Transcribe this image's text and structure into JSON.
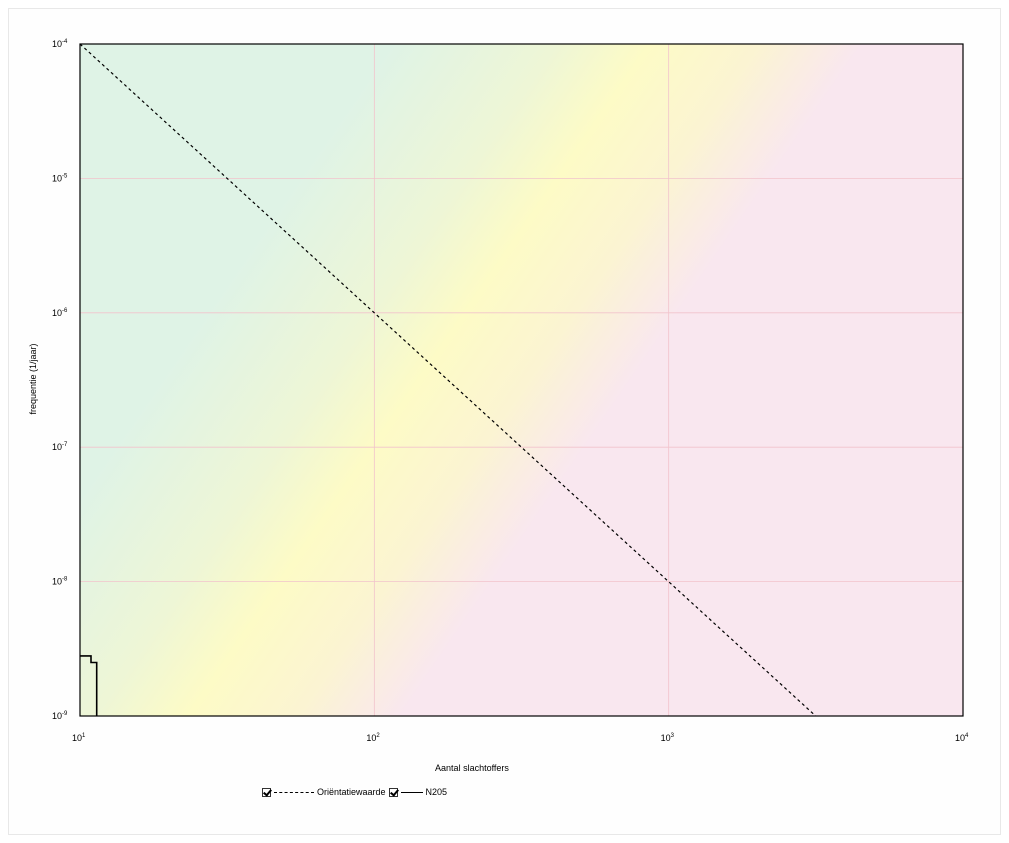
{
  "chart_data": {
    "type": "line",
    "xlabel": "Aantal slachtoffers",
    "ylabel": "frequentie (1/jaar)",
    "x_scale": "log",
    "y_scale": "log",
    "xlim": [
      10,
      10000
    ],
    "ylim": [
      1e-09,
      0.0001
    ],
    "x_ticks": [
      {
        "value": 10,
        "base": "10",
        "exp": "1"
      },
      {
        "value": 100,
        "base": "10",
        "exp": "2"
      },
      {
        "value": 1000,
        "base": "10",
        "exp": "3"
      },
      {
        "value": 10000,
        "base": "10",
        "exp": "4"
      }
    ],
    "y_ticks": [
      {
        "value": 0.0001,
        "base": "10",
        "exp": "-4"
      },
      {
        "value": 1e-05,
        "base": "10",
        "exp": "-5"
      },
      {
        "value": 1e-06,
        "base": "10",
        "exp": "-6"
      },
      {
        "value": 1e-07,
        "base": "10",
        "exp": "-7"
      },
      {
        "value": 1e-08,
        "base": "10",
        "exp": "-8"
      },
      {
        "value": 1e-09,
        "base": "10",
        "exp": "-9"
      }
    ],
    "grid": true,
    "legend_position": "bottom-center",
    "series": [
      {
        "name": "Oriëntatiewaarde",
        "style": "dashed",
        "color": "#000000",
        "points": [
          [
            10,
            0.0001
          ],
          [
            3160,
            1e-09
          ]
        ]
      },
      {
        "name": "N205",
        "style": "step",
        "color": "#000000",
        "points": [
          [
            10,
            2.8e-09
          ],
          [
            10.9,
            2.8e-09
          ],
          [
            10.9,
            2.5e-09
          ],
          [
            11.4,
            2.5e-09
          ],
          [
            11.4,
            1e-09
          ]
        ]
      }
    ],
    "background_zones": [
      {
        "name": "green",
        "color": "#dff3e6"
      },
      {
        "name": "yellow",
        "color": "#fdfbc6"
      },
      {
        "name": "pink",
        "color": "#f9e7ef"
      }
    ]
  }
}
